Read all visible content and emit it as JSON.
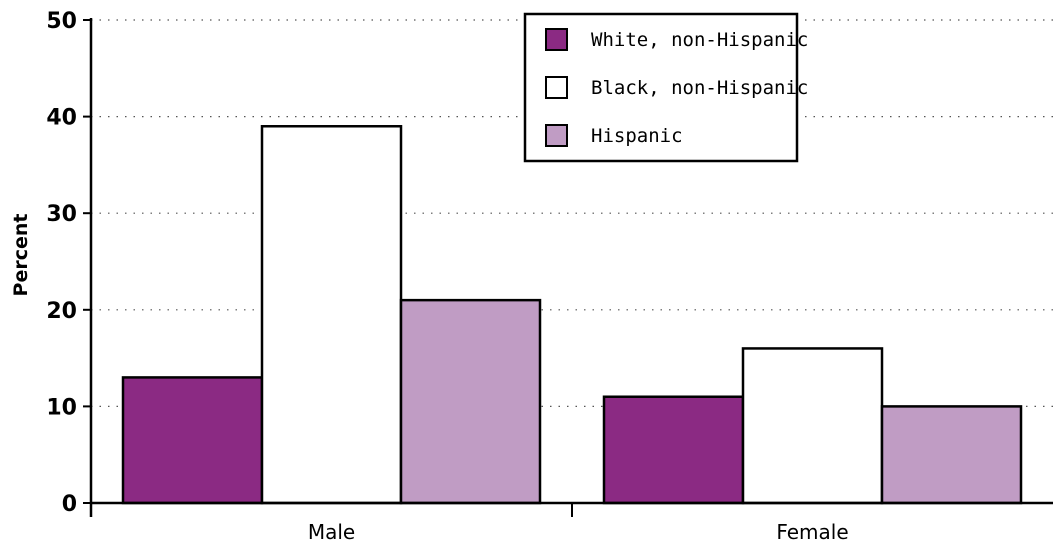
{
  "chart_data": {
    "type": "bar",
    "title": "",
    "xlabel": "",
    "ylabel": "Percent",
    "ylim": [
      0,
      50
    ],
    "yticks": [
      0,
      10,
      20,
      30,
      40,
      50
    ],
    "grid": "horizontal-dotted",
    "legend_position": "top-center",
    "categories": [
      "Male",
      "Female"
    ],
    "series": [
      {
        "name": "White, non-Hispanic",
        "values": [
          13,
          11
        ],
        "color": "#8b2a83"
      },
      {
        "name": "Black, non-Hispanic",
        "values": [
          39,
          16
        ],
        "color": "#ffffff"
      },
      {
        "name": "Hispanic",
        "values": [
          21,
          10
        ],
        "color": "#c09cc4"
      }
    ]
  }
}
